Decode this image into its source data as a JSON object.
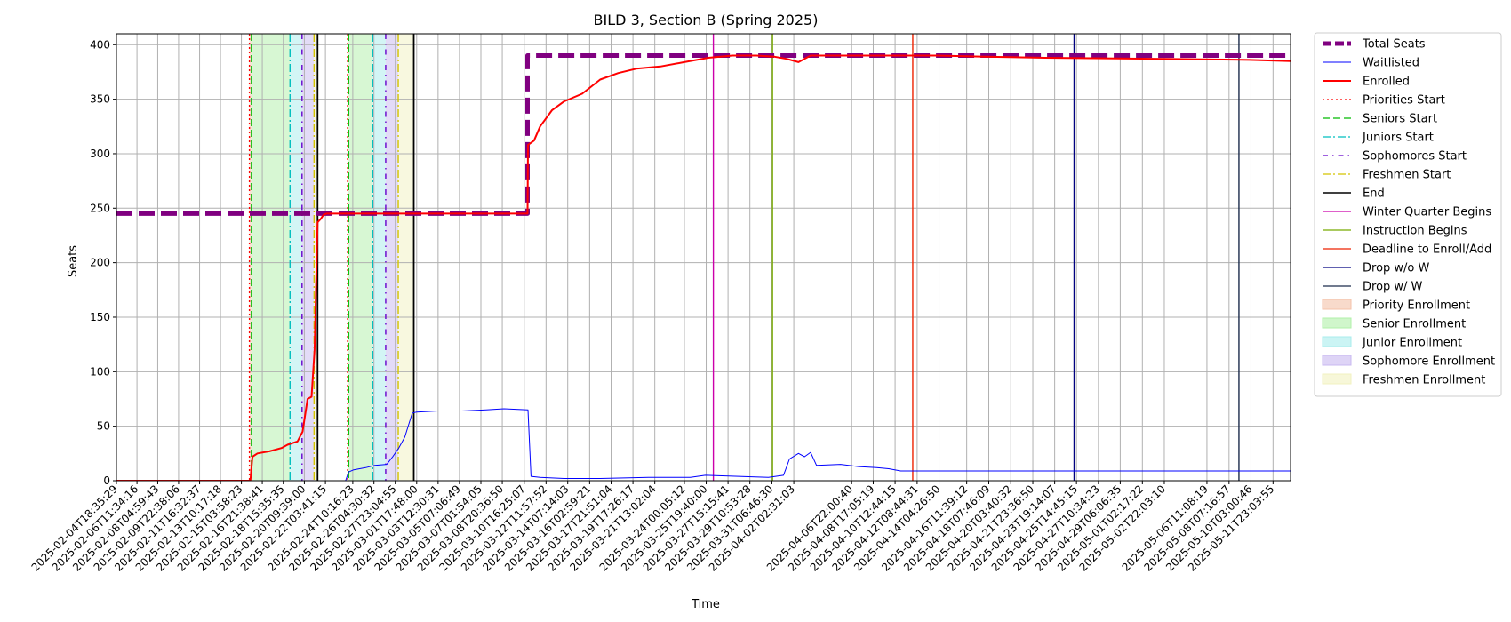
{
  "chart_data": {
    "type": "line",
    "title": "BILD 3, Section B (Spring 2025)",
    "xlabel": "Time",
    "ylabel": "Seats",
    "ylim": [
      0,
      410
    ],
    "yticks": [
      0,
      50,
      100,
      150,
      200,
      250,
      300,
      350,
      400
    ],
    "grid": true,
    "legend_position": "outside right",
    "x_range": [
      "2025-02-04T18:35:29",
      "2025-05-13T10:00:00"
    ],
    "xtick_labels": [
      "2025-02-04T18:35:29",
      "2025-02-06T11:34:16",
      "2025-02-08T04:59:43",
      "2025-02-09T22:38:06",
      "2025-02-11T16:32:37",
      "2025-02-13T10:17:18",
      "2025-02-15T03:58:23",
      "2025-02-16T21:38:41",
      "2025-02-18T15:35:35",
      "2025-02-20T09:39:00",
      "2025-02-22T03:41:15",
      "2025-02-24T10:16:23",
      "2025-02-26T04:30:32",
      "2025-02-27T23:04:55",
      "2025-03-01T17:48:00",
      "2025-03-03T12:30:31",
      "2025-03-05T07:06:49",
      "2025-03-07T01:54:05",
      "2025-03-08T20:36:50",
      "2025-03-10T16:25:07",
      "2025-03-12T11:57:52",
      "2025-03-14T07:14:03",
      "2025-03-16T02:59:21",
      "2025-03-17T21:51:04",
      "2025-03-19T17:26:17",
      "2025-03-21T13:02:04",
      "2025-03-24T00:05:12",
      "2025-03-25T19:40:00",
      "2025-03-27T15:15:41",
      "2025-03-29T10:53:28",
      "2025-03-31T06:46:30",
      "2025-04-02T02:31:03",
      "2025-04-06T22:00:40",
      "2025-04-08T17:05:19",
      "2025-04-10T12:44:15",
      "2025-04-12T08:44:31",
      "2025-04-14T04:26:50",
      "2025-04-16T11:39:12",
      "2025-04-18T07:46:09",
      "2025-04-20T03:40:32",
      "2025-04-21T23:36:50",
      "2025-04-23T19:14:07",
      "2025-04-25T14:45:15",
      "2025-04-27T10:34:23",
      "2025-04-29T06:06:35",
      "2025-05-01T02:17:22",
      "2025-05-02T22:03:10",
      "2025-05-06T11:08:19",
      "2025-05-08T07:16:57",
      "2025-05-10T03:00:46",
      "2025-05-11T23:03:55"
    ],
    "series": [
      {
        "name": "Total Seats",
        "color": "#800080",
        "style": "dashed",
        "width": 5,
        "x": [
          "2025-02-04T18:35:29",
          "2025-03-10T23:00:00",
          "2025-03-10T23:00:00",
          "2025-05-13T10:00:00"
        ],
        "y": [
          245,
          245,
          390,
          390
        ]
      },
      {
        "name": "Waitlisted",
        "color": "#0000ff",
        "style": "solid",
        "width": 1,
        "x": [
          "2025-02-04T18:35:29",
          "2025-02-23T20:00:00",
          "2025-02-24T02:00:00",
          "2025-02-24T12:00:00",
          "2025-02-25T12:00:00",
          "2025-02-26T06:00:00",
          "2025-02-27T06:00:00",
          "2025-02-27T18:00:00",
          "2025-02-28T06:00:00",
          "2025-02-28T18:00:00",
          "2025-03-01T09:00:00",
          "2025-03-01T18:00:00",
          "2025-03-03T12:00:00",
          "2025-03-05T12:00:00",
          "2025-03-07T12:00:00",
          "2025-03-09T00:00:00",
          "2025-03-11T00:00:00",
          "2025-03-11T06:00:00",
          "2025-03-12T00:00:00",
          "2025-03-14T00:00:00",
          "2025-03-17T00:00:00",
          "2025-03-21T00:00:00",
          "2025-03-24T12:00:00",
          "2025-03-25T18:00:00",
          "2025-03-28T12:00:00",
          "2025-03-31T00:00:00",
          "2025-04-01T06:00:00",
          "2025-04-01T18:00:00",
          "2025-04-02T12:00:00",
          "2025-04-03T00:00:00",
          "2025-04-03T12:00:00",
          "2025-04-04T00:00:00",
          "2025-04-06T00:00:00",
          "2025-04-07T12:00:00",
          "2025-04-09T00:00:00",
          "2025-04-10T00:00:00",
          "2025-04-11T00:00:00",
          "2025-05-13T10:00:00"
        ],
        "y": [
          0,
          0,
          8,
          10,
          12,
          14,
          15,
          22,
          30,
          40,
          62,
          63,
          64,
          64,
          65,
          66,
          65,
          4,
          3,
          2,
          2,
          3,
          3,
          5,
          4,
          3,
          5,
          20,
          25,
          22,
          26,
          14,
          15,
          13,
          12,
          11,
          9,
          9
        ]
      },
      {
        "name": "Enrolled",
        "color": "#ff0000",
        "style": "solid",
        "width": 2,
        "x": [
          "2025-02-04T18:35:29",
          "2025-02-15T22:00:00",
          "2025-02-16T02:00:00",
          "2025-02-16T12:00:00",
          "2025-02-17T12:00:00",
          "2025-02-18T12:00:00",
          "2025-02-19T00:00:00",
          "2025-02-19T20:00:00",
          "2025-02-20T06:00:00",
          "2025-02-20T16:00:00",
          "2025-02-21T00:00:00",
          "2025-02-21T06:00:00",
          "2025-02-21T12:00:00",
          "2025-02-21T18:00:00",
          "2025-02-22T00:00:00",
          "2025-02-22T06:00:00",
          "2025-02-22T18:00:00",
          "2025-03-10T23:00:00",
          "2025-03-11T00:00:00",
          "2025-03-11T12:00:00",
          "2025-03-12T00:00:00",
          "2025-03-13T00:00:00",
          "2025-03-14T00:00:00",
          "2025-03-15T12:00:00",
          "2025-03-17T00:00:00",
          "2025-03-18T12:00:00",
          "2025-03-20T00:00:00",
          "2025-03-22T00:00:00",
          "2025-03-24T00:00:00",
          "2025-03-26T00:00:00",
          "2025-03-28T00:00:00",
          "2025-03-30T00:00:00",
          "2025-03-31T12:00:00",
          "2025-04-01T12:00:00",
          "2025-04-02T12:00:00",
          "2025-04-03T12:00:00",
          "2025-04-04T00:00:00",
          "2025-04-06T00:00:00",
          "2025-04-10T00:00:00",
          "2025-04-14T00:00:00",
          "2025-04-18T00:00:00",
          "2025-04-23T00:00:00",
          "2025-05-03T00:00:00",
          "2025-05-10T00:00:00",
          "2025-05-13T10:00:00"
        ],
        "y": [
          0,
          0,
          22,
          25,
          27,
          30,
          33,
          36,
          45,
          75,
          77,
          120,
          237,
          240,
          244,
          245,
          245,
          245,
          308,
          312,
          325,
          340,
          348,
          355,
          368,
          374,
          378,
          380,
          384,
          388,
          390,
          390,
          389,
          387,
          384,
          390,
          390,
          390,
          390,
          390,
          389,
          388,
          387,
          386,
          385
        ]
      }
    ],
    "event_lines": [
      {
        "name": "Priorities Start",
        "color": "#ff0000",
        "style": "dotted",
        "x": [
          "2025-02-15T20:00:00",
          "2025-02-24T00:00:00"
        ]
      },
      {
        "name": "Seniors Start",
        "color": "#00bb00",
        "style": "dashed",
        "x": [
          "2025-02-16T00:00:00",
          "2025-02-24T02:00:00"
        ]
      },
      {
        "name": "Juniors Start",
        "color": "#00bfbf",
        "style": "dashdot",
        "x": [
          "2025-02-19T05:00:00",
          "2025-02-26T02:00:00"
        ]
      },
      {
        "name": "Sophomores Start",
        "color": "#6600cc",
        "style": "dashdot-dense",
        "x": [
          "2025-02-20T05:00:00",
          "2025-02-27T04:00:00"
        ]
      },
      {
        "name": "Freshmen Start",
        "color": "#d4c400",
        "style": "dashdot",
        "x": [
          "2025-02-21T05:00:00",
          "2025-02-28T05:00:00"
        ]
      },
      {
        "name": "End",
        "color": "#000000",
        "style": "solid",
        "x": [
          "2025-02-21T12:00:00",
          "2025-03-01T12:00:00"
        ]
      },
      {
        "name": "Winter Quarter Begins",
        "color": "#cc00aa",
        "style": "solid",
        "x": [
          "2025-03-26T10:00:00"
        ]
      },
      {
        "name": "Instruction Begins",
        "color": "#77aa00",
        "style": "solid",
        "x": [
          "2025-03-31T08:00:00"
        ]
      },
      {
        "name": "Deadline to Enroll/Add",
        "color": "#ee2200",
        "style": "solid",
        "x": [
          "2025-04-12T00:00:00"
        ]
      },
      {
        "name": "Drop w/o W",
        "color": "#000080",
        "style": "solid",
        "x": [
          "2025-04-25T10:00:00"
        ]
      },
      {
        "name": "Drop w/ W",
        "color": "#1c2c4c",
        "style": "solid",
        "x": [
          "2025-05-09T03:00:00"
        ]
      }
    ],
    "shaded_spans": [
      {
        "name": "Priority Enrollment",
        "color": "#f4c2a8",
        "spans": [
          [
            "2025-02-15T20:00:00",
            "2025-02-16T00:00:00"
          ],
          [
            "2025-02-24T00:00:00",
            "2025-02-24T02:00:00"
          ]
        ]
      },
      {
        "name": "Senior Enrollment",
        "color": "#b0f0a8",
        "spans": [
          [
            "2025-02-16T00:00:00",
            "2025-02-19T05:00:00"
          ],
          [
            "2025-02-24T02:00:00",
            "2025-02-26T02:00:00"
          ]
        ]
      },
      {
        "name": "Junior Enrollment",
        "color": "#a8ecec",
        "spans": [
          [
            "2025-02-19T05:00:00",
            "2025-02-20T05:00:00"
          ],
          [
            "2025-02-26T02:00:00",
            "2025-02-27T04:00:00"
          ]
        ]
      },
      {
        "name": "Sophomore Enrollment",
        "color": "#c8b8f0",
        "spans": [
          [
            "2025-02-20T05:00:00",
            "2025-02-21T05:00:00"
          ],
          [
            "2025-02-27T04:00:00",
            "2025-02-28T05:00:00"
          ]
        ]
      },
      {
        "name": "Freshmen Enrollment",
        "color": "#f2f2c0",
        "spans": [
          [
            "2025-02-21T05:00:00",
            "2025-02-21T12:00:00"
          ],
          [
            "2025-02-28T05:00:00",
            "2025-03-01T12:00:00"
          ]
        ]
      }
    ],
    "legend": [
      {
        "label": "Total Seats",
        "kind": "line",
        "color": "#800080",
        "style": "dashed",
        "width": 5
      },
      {
        "label": "Waitlisted",
        "kind": "line",
        "color": "#0000ff",
        "style": "solid",
        "width": 1
      },
      {
        "label": "Enrolled",
        "kind": "line",
        "color": "#ff0000",
        "style": "solid",
        "width": 2
      },
      {
        "label": "Priorities Start",
        "kind": "line",
        "color": "#ff0000",
        "style": "dotted",
        "width": 1.3
      },
      {
        "label": "Seniors Start",
        "kind": "line",
        "color": "#00bb00",
        "style": "dashed",
        "width": 1.3
      },
      {
        "label": "Juniors Start",
        "kind": "line",
        "color": "#00bfbf",
        "style": "dashdot",
        "width": 1.3
      },
      {
        "label": "Sophomores Start",
        "kind": "line",
        "color": "#6600cc",
        "style": "dashdot-dense",
        "width": 1.3
      },
      {
        "label": "Freshmen Start",
        "kind": "line",
        "color": "#d4c400",
        "style": "dashdot",
        "width": 1.3
      },
      {
        "label": "End",
        "kind": "line",
        "color": "#000000",
        "style": "solid",
        "width": 1.5
      },
      {
        "label": "Winter Quarter Begins",
        "kind": "line",
        "color": "#cc00aa",
        "style": "solid",
        "width": 1.3
      },
      {
        "label": "Instruction Begins",
        "kind": "line",
        "color": "#77aa00",
        "style": "solid",
        "width": 1.3
      },
      {
        "label": "Deadline to Enroll/Add",
        "kind": "line",
        "color": "#ee2200",
        "style": "solid",
        "width": 1.3
      },
      {
        "label": "Drop w/o W",
        "kind": "line",
        "color": "#000080",
        "style": "solid",
        "width": 1.3
      },
      {
        "label": "Drop w/ W",
        "kind": "line",
        "color": "#1c2c4c",
        "style": "solid",
        "width": 1.3
      },
      {
        "label": "Priority Enrollment",
        "kind": "patch",
        "color": "#f4c2a8"
      },
      {
        "label": "Senior Enrollment",
        "kind": "patch",
        "color": "#b0f0a8"
      },
      {
        "label": "Junior Enrollment",
        "kind": "patch",
        "color": "#a8ecec"
      },
      {
        "label": "Sophomore Enrollment",
        "kind": "patch",
        "color": "#c8b8f0"
      },
      {
        "label": "Freshmen Enrollment",
        "kind": "patch",
        "color": "#f2f2c0"
      }
    ]
  }
}
